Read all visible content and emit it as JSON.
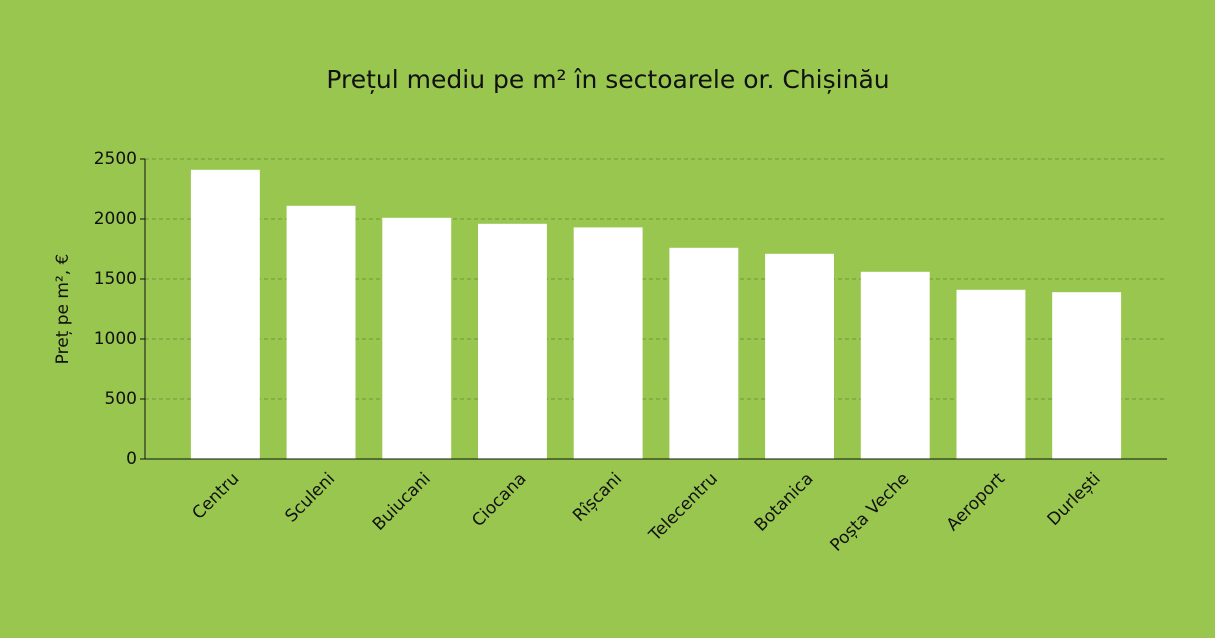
{
  "chart_data": {
    "type": "bar",
    "title": "Prețul mediu pe m² în sectoarele or. Chișinău",
    "y_label": "Preț pe m², €",
    "categories": [
      "Centru",
      "Sculeni",
      "Buiucani",
      "Ciocana",
      "Rîșcani",
      "Telecentru",
      "Botanica",
      "Poșta Veche",
      "Aeroport",
      "Durlești"
    ],
    "values": [
      2410,
      2110,
      2010,
      1960,
      1930,
      1760,
      1710,
      1560,
      1410,
      1390
    ],
    "color": "#ffffff",
    "ylim": [
      0,
      2500
    ],
    "yticks": [
      0,
      500,
      1000,
      1500,
      2000,
      2500
    ],
    "grid": true
  }
}
